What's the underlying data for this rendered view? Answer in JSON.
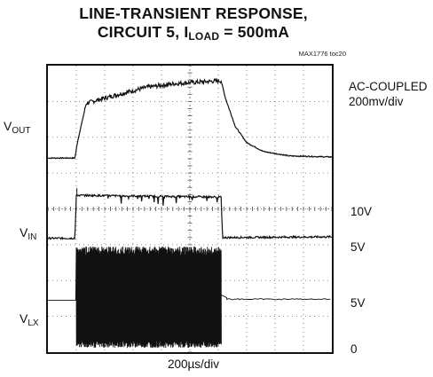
{
  "title_line1": "LINE-TRANSIENT RESPONSE,",
  "title_line2_prefix": "CIRCUIT 5, I",
  "title_line2_sub": "LOAD",
  "title_line2_suffix": " = 500mA",
  "figure_code": "MAX1776 toc20",
  "xlabel": "200µs/div",
  "left_labels": {
    "vout": {
      "main": "V",
      "sub": "OUT"
    },
    "vin": {
      "main": "V",
      "sub": "IN"
    },
    "vlx": {
      "main": "V",
      "sub": "LX"
    }
  },
  "right_labels": {
    "vout_line1": "AC-COUPLED",
    "vout_line2": "200mv/div",
    "vin_high": "10V",
    "vin_low": "5V",
    "vlx_high": "5V",
    "vlx_low": "0"
  },
  "chart_data": {
    "type": "line",
    "title": "LINE-TRANSIENT RESPONSE, CIRCUIT 5, ILOAD = 500mA",
    "xlabel": "200µs/div",
    "ylabel": "",
    "grid": true,
    "grid_style": "dotted",
    "divisions": {
      "x": 10,
      "y": 8
    },
    "x_unit": "div",
    "xlim": [
      0,
      10
    ],
    "series": [
      {
        "name": "VOUT",
        "note": "AC-COUPLED, 200mv/div",
        "x": [
          0,
          0.95,
          1.05,
          1.35,
          1.8,
          2.5,
          3.5,
          4.5,
          5.5,
          6.1,
          6.25,
          6.6,
          7.0,
          7.6,
          8.5,
          10
        ],
        "y": [
          5.42,
          5.42,
          5.9,
          6.95,
          7.05,
          7.2,
          7.4,
          7.5,
          7.55,
          7.58,
          7.1,
          6.3,
          5.85,
          5.6,
          5.48,
          5.45
        ]
      },
      {
        "name": "VIN",
        "note": "steps 5V to 10V",
        "x": [
          0,
          0.95,
          1.0,
          6.1,
          6.15,
          10
        ],
        "y": [
          3.18,
          3.18,
          4.38,
          4.33,
          3.2,
          3.22
        ],
        "levels": {
          "low": "5V",
          "high": "10V"
        }
      },
      {
        "name": "VLX",
        "note": "switching between 0 and 5V while VIN is high",
        "x": [
          0,
          0.95,
          1.0,
          6.1,
          6.25,
          10
        ],
        "y": [
          1.45,
          1.45,
          0.1,
          0.1,
          1.5,
          1.48
        ],
        "switching_interval_div": [
          1.0,
          6.1
        ],
        "levels": {
          "low": "0",
          "high": "5V"
        }
      }
    ]
  }
}
